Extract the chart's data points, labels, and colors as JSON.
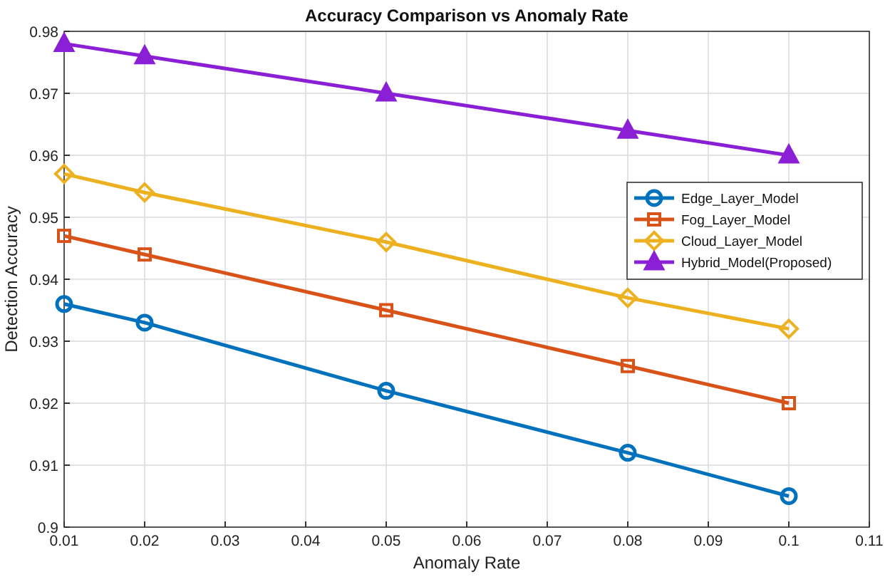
{
  "chart_data": {
    "type": "line",
    "title": "Accuracy Comparison vs Anomaly Rate",
    "xlabel": "Anomaly Rate",
    "ylabel": "Detection Accuracy",
    "x": [
      0.01,
      0.02,
      0.05,
      0.08,
      0.1
    ],
    "series": [
      {
        "name": "Edge_Layer_Model",
        "color": "#0072bd",
        "marker": "circle",
        "values": [
          0.936,
          0.933,
          0.922,
          0.912,
          0.905
        ]
      },
      {
        "name": "Fog_Layer_Model",
        "color": "#d95319",
        "marker": "square",
        "values": [
          0.947,
          0.944,
          0.935,
          0.926,
          0.92
        ]
      },
      {
        "name": "Cloud_Layer_Model",
        "color": "#edb120",
        "marker": "diamond",
        "values": [
          0.957,
          0.954,
          0.946,
          0.937,
          0.932
        ]
      },
      {
        "name": "Hybrid_Model(Proposed)",
        "color": "#8a1fd6",
        "marker": "triangle",
        "values": [
          0.978,
          0.976,
          0.97,
          0.964,
          0.96
        ]
      }
    ],
    "xlim": [
      0.01,
      0.11
    ],
    "xticks": [
      0.01,
      0.02,
      0.03,
      0.04,
      0.05,
      0.06,
      0.07,
      0.08,
      0.09,
      0.1,
      0.11
    ],
    "ylim": [
      0.9,
      0.98
    ],
    "yticks": [
      0.9,
      0.91,
      0.92,
      0.93,
      0.94,
      0.95,
      0.96,
      0.97,
      0.98
    ],
    "grid": true,
    "legend": "right",
    "line_style": "solid"
  }
}
